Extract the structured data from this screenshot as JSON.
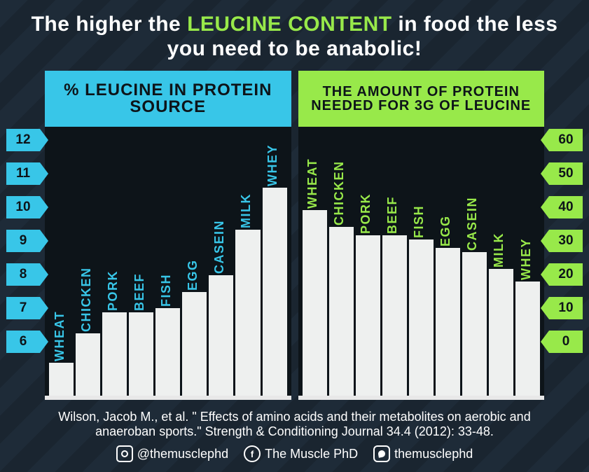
{
  "title": {
    "prefix": "The higher the ",
    "highlight": "LEUCINE CONTENT",
    "mid": " in food the less you need to be anabolic!",
    "text_color": "#ffffff",
    "highlight_color": "#98e94a",
    "fontsize": 30
  },
  "background": {
    "base_color": "#1a2530",
    "stripe_color": "#1e2b38",
    "stripe_angle": 135,
    "stripe_width": 28
  },
  "charts": [
    {
      "id": "leucine-percent",
      "header": "% LEUCINE IN PROTEIN SOURCE",
      "header_bg": "#38c6e8",
      "header_text_color": "#0d1419",
      "header_fontsize": 24,
      "label_color": "#38c6e8",
      "bar_color": "#eef0ef",
      "panel_bg": "#0d1419",
      "categories": [
        "WHEAT",
        "CHICKEN",
        "PORK",
        "BEEF",
        "FISH",
        "EGG",
        "CASEIN",
        "MILK",
        "WHEY"
      ],
      "values": [
        6.8,
        7.5,
        8.0,
        8.0,
        8.1,
        8.5,
        8.9,
        10.0,
        11.0
      ],
      "ymin": 6,
      "ymax": 12.3,
      "y_ticks": [
        12,
        11,
        10,
        9,
        8,
        7,
        6
      ],
      "tick_side": "left",
      "tick_bg": "#38c6e8",
      "tick_text_color": "#0d1419",
      "tick_fontsize": 19
    },
    {
      "id": "protein-needed",
      "header": "THE AMOUNT OF PROTEIN NEEDED FOR 3G OF LEUCINE",
      "header_bg": "#98e94a",
      "header_text_color": "#0d1419",
      "header_fontsize": 20,
      "label_color": "#98e94a",
      "bar_color": "#eef0ef",
      "panel_bg": "#0d1419",
      "categories": [
        "WHEAT",
        "CHICKEN",
        "PORK",
        "BEEF",
        "FISH",
        "EGG",
        "CASEIN",
        "MILK",
        "WHEY"
      ],
      "values": [
        44,
        40,
        38,
        38,
        37,
        35,
        34,
        30,
        27
      ],
      "ymin": 0,
      "ymax": 62,
      "y_ticks": [
        60,
        50,
        40,
        30,
        20,
        10,
        0
      ],
      "tick_side": "right",
      "tick_bg": "#98e94a",
      "tick_text_color": "#0d1419",
      "tick_fontsize": 19
    }
  ],
  "citation": "Wilson, Jacob M., et al. \" Effects of amino acids and their metabolites on aerobic and anaeroban sports.\" Strength & Conditioning Journal 34.4 (2012): 33-48.",
  "socials": [
    {
      "icon": "instagram-icon",
      "label": "@themusclephd"
    },
    {
      "icon": "facebook-icon",
      "label": "The Muscle PhD"
    },
    {
      "icon": "snapchat-icon",
      "label": "themusclephd"
    }
  ]
}
